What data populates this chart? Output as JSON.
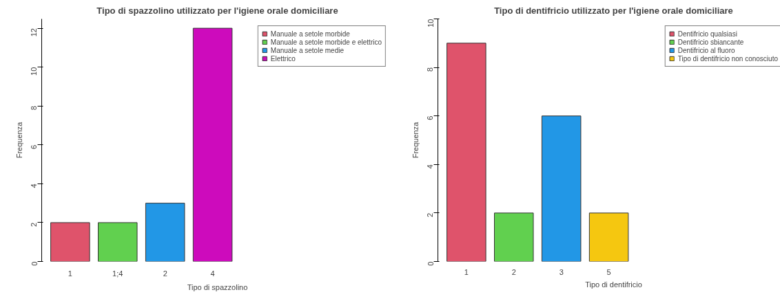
{
  "chart_data": [
    {
      "type": "bar",
      "title": "Tipo di spazzolino utilizzato per l'igiene orale domiciliare",
      "xlabel": "Tipo di spazzolino",
      "ylabel": "Frequenza",
      "categories": [
        "1",
        "1;4",
        "2",
        "4"
      ],
      "stacked": true,
      "series": [
        {
          "name": "Manuale a setole morbide",
          "color": "#df536b",
          "values": [
            2,
            null,
            null,
            null
          ]
        },
        {
          "name": "Manuale a setole morbide e elettrico",
          "color": "#61d04f",
          "values": [
            null,
            2,
            null,
            null
          ]
        },
        {
          "name": "Manuale a setole medie",
          "color": "#2297e6",
          "values": [
            null,
            null,
            3,
            null
          ]
        },
        {
          "name": "Elettrico",
          "color": "#cd0bbc",
          "values": [
            null,
            null,
            null,
            12
          ]
        }
      ],
      "ylim": [
        0,
        12.48
      ],
      "yticks": [
        0,
        2,
        4,
        6,
        8,
        10,
        12
      ],
      "legend": "top right",
      "grid": false
    },
    {
      "type": "bar",
      "title": "Tipo di dentifricio utilizzato per l'igiene orale domiciliare",
      "xlabel": "Tipo di dentifricio",
      "ylabel": "Frequenza",
      "categories": [
        "1",
        "2",
        "3",
        "5"
      ],
      "stacked": true,
      "series": [
        {
          "name": "Dentifricio qualsiasi",
          "color": "#df536b",
          "values": [
            9,
            null,
            null,
            null
          ]
        },
        {
          "name": "Dentifricio sbiancante",
          "color": "#61d04f",
          "values": [
            null,
            2,
            null,
            null
          ]
        },
        {
          "name": "Dentifricio al fluoro",
          "color": "#2297e6",
          "values": [
            null,
            null,
            6,
            null
          ]
        },
        {
          "name": "Tipo di dentifricio non conosciuto",
          "color": "#f5c710",
          "values": [
            null,
            null,
            null,
            2
          ]
        }
      ],
      "ylim": [
        0,
        10
      ],
      "yticks": [
        0,
        2,
        4,
        6,
        8,
        10
      ],
      "legend": "top right",
      "grid": false
    }
  ]
}
